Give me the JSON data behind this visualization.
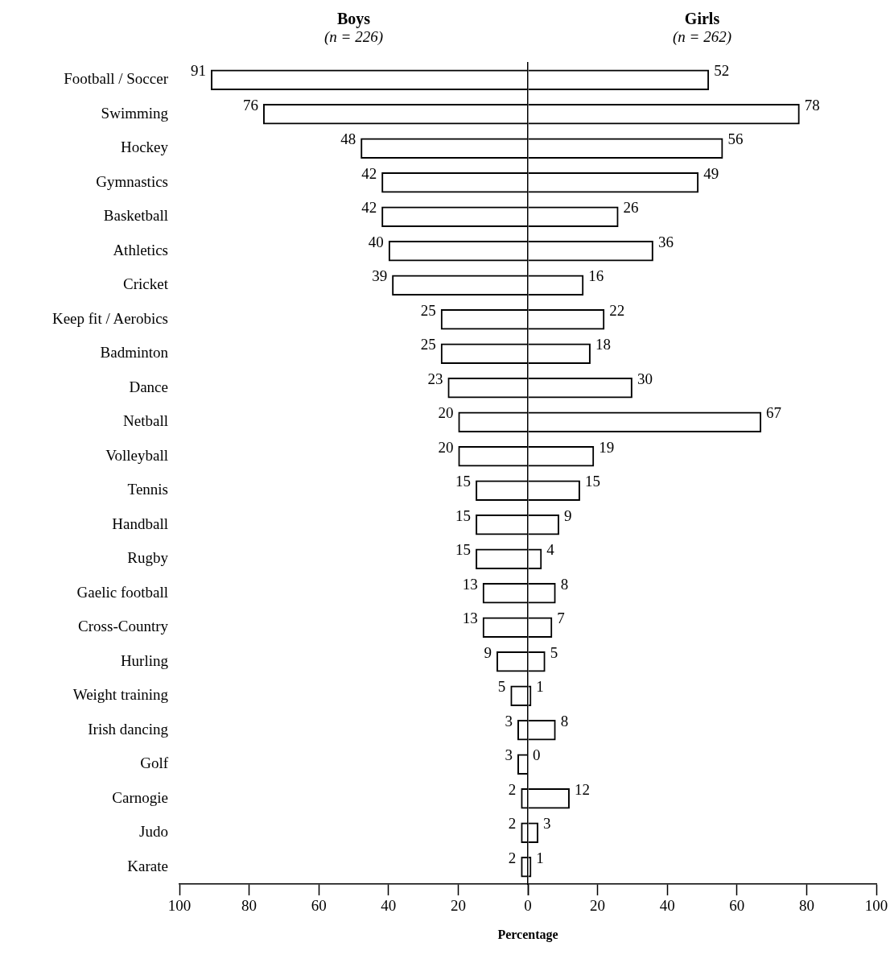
{
  "chart_data": [
    {
      "type": "bar",
      "orientation": "horizontal",
      "title": "Boys",
      "subtitle": "(n = 226)",
      "categories": [
        "Football / Soccer",
        "Swimming",
        "Hockey",
        "Gymnastics",
        "Basketball",
        "Athletics",
        "Cricket",
        "Keep fit / Aerobics",
        "Badminton",
        "Dance",
        "Netball",
        "Volleyball",
        "Tennis",
        "Handball",
        "Rugby",
        "Gaelic football",
        "Cross-Country",
        "Hurling",
        "Weight training",
        "Irish dancing",
        "Golf",
        "Carnogie",
        "Judo",
        "Karate"
      ],
      "series": [
        {
          "color": "#000000",
          "values": [
            91,
            76,
            48,
            42,
            42,
            40,
            39,
            25,
            25,
            23,
            20,
            20,
            15,
            15,
            15,
            13,
            13,
            9,
            5,
            3,
            3,
            2,
            2,
            2
          ]
        }
      ],
      "data_labels": true,
      "xlim": [
        100,
        0
      ],
      "xticks": [
        100,
        80,
        60,
        40,
        20,
        {
          "value": 0,
          "label": null
        }
      ],
      "grid": false,
      "legend": false
    },
    {
      "type": "bar",
      "orientation": "horizontal",
      "title": "Girls",
      "subtitle": "(n = 262)",
      "xlabel": "Percentage",
      "categories": [
        null,
        null,
        null,
        null,
        null,
        null,
        null,
        null,
        null,
        null,
        null,
        null,
        null,
        null,
        null,
        null,
        null,
        null,
        null,
        null,
        null,
        null,
        null,
        null
      ],
      "series": [
        {
          "color": "#000000",
          "values": [
            52,
            78,
            56,
            49,
            26,
            36,
            16,
            22,
            18,
            30,
            67,
            19,
            15,
            9,
            4,
            8,
            7,
            5,
            1,
            8,
            0,
            12,
            3,
            1
          ]
        }
      ],
      "data_labels": true,
      "xlim": [
        0,
        100
      ],
      "xticks": [
        0,
        20,
        40,
        60,
        80,
        100
      ],
      "grid": false,
      "legend": false
    }
  ]
}
